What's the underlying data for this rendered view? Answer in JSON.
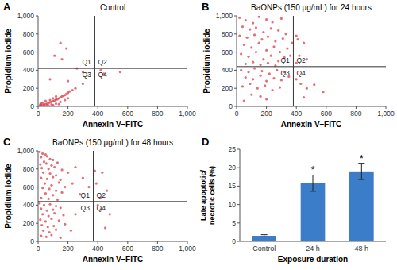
{
  "chart_data": [
    {
      "type": "scatter",
      "panel_label": "A",
      "title": "Control",
      "x_label": "Annexin V–FITC",
      "y_label": "Propidium iodide",
      "xlim": [
        0,
        1000
      ],
      "ylim": [
        0,
        1000
      ],
      "xticks": [
        0,
        200,
        400,
        600,
        800,
        {
          "value": 1000,
          "label": "1,000"
        }
      ],
      "yticks": [
        0,
        200,
        400,
        600,
        800,
        {
          "value": 1000,
          "label": "1,000"
        }
      ],
      "quadrant_x": 380,
      "quadrant_y": 420,
      "quadrant_labels": [
        "Q1",
        "Q2",
        "Q3",
        "Q4"
      ],
      "color": "#d9404a",
      "marker": "circle",
      "x": [
        10,
        20,
        30,
        40,
        50,
        60,
        70,
        80,
        90,
        100,
        110,
        120,
        130,
        140,
        150,
        160,
        170,
        180,
        190,
        200,
        210,
        230,
        250,
        30,
        50,
        80,
        100,
        120,
        60,
        90,
        120,
        150,
        180,
        200,
        40,
        70,
        100,
        140,
        20,
        15,
        150,
        190,
        110,
        260,
        300,
        420,
        440,
        550,
        160,
        80,
        200,
        300
      ],
      "values": [
        5,
        10,
        15,
        20,
        25,
        30,
        35,
        45,
        50,
        60,
        65,
        75,
        80,
        90,
        100,
        110,
        120,
        125,
        140,
        150,
        165,
        180,
        200,
        40,
        60,
        70,
        90,
        110,
        10,
        20,
        30,
        50,
        70,
        90,
        5,
        8,
        15,
        25,
        30,
        20,
        700,
        640,
        560,
        420,
        380,
        400,
        360,
        380,
        520,
        300,
        280,
        250
      ]
    },
    {
      "type": "scatter",
      "panel_label": "B",
      "title": "BaONPs (150 μg/mL) for 24 hours",
      "x_label": "Annexin V–FITC",
      "y_label": "Propidium iodide",
      "xlim": [
        0,
        1000
      ],
      "ylim": [
        0,
        1000
      ],
      "xticks": [
        0,
        200,
        400,
        600,
        800,
        {
          "value": 1000,
          "label": "1,000"
        }
      ],
      "yticks": [
        0,
        200,
        400,
        600,
        800,
        {
          "value": 1000,
          "label": "1,000"
        }
      ],
      "quadrant_x": 380,
      "quadrant_y": 440,
      "quadrant_labels": [
        "Q1",
        "Q2",
        "Q3",
        "Q4"
      ],
      "color": "#d9404a",
      "marker": "circle",
      "x": [
        20,
        60,
        110,
        150,
        200,
        240,
        300,
        40,
        90,
        130,
        180,
        230,
        280,
        330,
        20,
        70,
        120,
        170,
        210,
        260,
        310,
        50,
        100,
        150,
        200,
        250,
        290,
        340,
        30,
        80,
        130,
        180,
        230,
        280,
        320,
        60,
        110,
        160,
        210,
        260,
        370,
        360,
        400,
        410,
        450,
        420,
        470,
        400,
        30,
        80,
        120,
        170,
        220,
        270,
        320,
        60,
        110,
        160,
        200,
        250,
        300,
        350,
        40,
        90,
        140,
        190,
        240,
        290,
        100,
        160,
        200,
        50,
        400,
        430,
        470,
        520,
        450,
        580
      ],
      "values": [
        980,
        950,
        920,
        990,
        960,
        930,
        970,
        880,
        850,
        870,
        820,
        860,
        840,
        800,
        780,
        760,
        790,
        740,
        770,
        720,
        750,
        680,
        650,
        700,
        620,
        660,
        600,
        640,
        580,
        550,
        600,
        520,
        560,
        500,
        540,
        470,
        490,
        460,
        480,
        450,
        700,
        560,
        780,
        740,
        700,
        560,
        520,
        480,
        400,
        380,
        420,
        390,
        360,
        400,
        380,
        320,
        300,
        340,
        280,
        310,
        290,
        330,
        220,
        250,
        200,
        230,
        180,
        210,
        130,
        110,
        80,
        60,
        300,
        250,
        200,
        240,
        100,
        160
      ]
    },
    {
      "type": "scatter",
      "panel_label": "C",
      "title": "BaONPs (150 μg/mL) for 48 hours",
      "x_label": "Annexin V–FITC",
      "y_label": "Propidium iodide",
      "xlim": [
        0,
        1000
      ],
      "ylim": [
        0,
        1000
      ],
      "xticks": [
        0,
        200,
        400,
        600,
        800,
        {
          "value": 1000,
          "label": "1,000"
        }
      ],
      "yticks": [
        0,
        200,
        400,
        600,
        800,
        {
          "value": 1000,
          "label": "1,000"
        }
      ],
      "quadrant_x": 370,
      "quadrant_y": 440,
      "quadrant_labels": [
        "Q1",
        "Q2",
        "Q3",
        "Q4"
      ],
      "color": "#d9404a",
      "marker": "circle",
      "x": [
        10,
        30,
        50,
        20,
        60,
        80,
        40,
        100,
        15,
        55,
        90,
        130,
        25,
        70,
        110,
        160,
        35,
        80,
        120,
        200,
        20,
        60,
        100,
        150,
        45,
        90,
        140,
        230,
        30,
        75,
        120,
        180,
        50,
        100,
        160,
        280,
        20,
        70,
        130,
        250,
        300,
        340,
        380,
        430,
        390,
        460,
        420,
        10,
        40,
        80,
        120,
        20,
        60,
        100,
        150,
        30,
        70,
        110,
        170,
        15,
        50,
        90,
        140,
        25,
        65,
        105,
        180,
        35,
        75,
        120,
        20,
        55,
        90,
        150,
        250,
        220,
        400,
        420,
        480,
        450
      ],
      "values": [
        990,
        970,
        960,
        930,
        940,
        910,
        880,
        900,
        850,
        860,
        840,
        870,
        810,
        800,
        820,
        790,
        760,
        750,
        730,
        760,
        700,
        690,
        710,
        680,
        640,
        620,
        650,
        640,
        590,
        580,
        560,
        600,
        530,
        510,
        540,
        520,
        480,
        470,
        460,
        820,
        700,
        600,
        780,
        760,
        640,
        560,
        480,
        420,
        400,
        410,
        390,
        360,
        340,
        350,
        370,
        300,
        280,
        310,
        290,
        240,
        220,
        250,
        230,
        180,
        160,
        170,
        190,
        120,
        100,
        130,
        60,
        50,
        70,
        40,
        300,
        120,
        400,
        350,
        300,
        150
      ]
    },
    {
      "type": "bar",
      "panel_label": "D",
      "x_label": "Exposure duration",
      "y_label": "Late apoptotic/ necrotic cells (%)",
      "categories": [
        "Control",
        "24 h",
        "48 h"
      ],
      "values": [
        1.5,
        15.8,
        19.0
      ],
      "errors": [
        0.3,
        2.2,
        2.2
      ],
      "annotations": [
        null,
        "*",
        "*"
      ],
      "color": "#3b7dc8",
      "ylim": [
        0,
        25
      ],
      "yticks": [
        0,
        5,
        10,
        15,
        20,
        25
      ]
    }
  ]
}
